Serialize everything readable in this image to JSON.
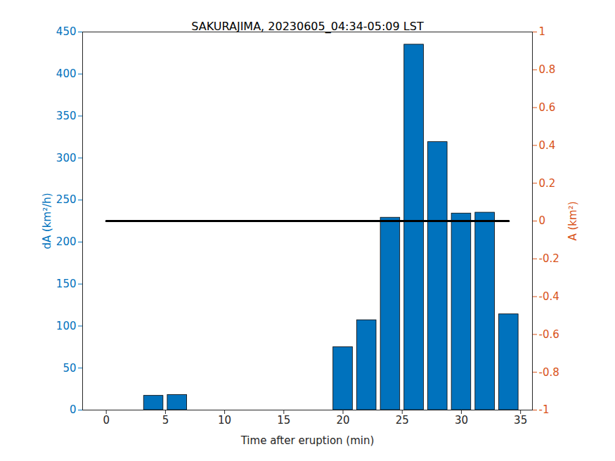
{
  "chart_data": {
    "type": "bar",
    "title": "SAKURAJIMA, 20230605_04:34-05:09 LST",
    "x": [
      0,
      2,
      4,
      6,
      8,
      10,
      12,
      14,
      16,
      18,
      20,
      22,
      24,
      26,
      28,
      30,
      32,
      34
    ],
    "series": [
      {
        "type": "bar",
        "color": "#0072bd",
        "values": [
          0,
          0,
          17,
          18,
          0,
          0,
          0,
          0,
          0,
          0,
          75,
          107,
          229,
          435,
          319,
          234,
          235,
          114
        ]
      },
      {
        "type": "line",
        "color": "#000000",
        "axis": "y2",
        "values": [
          0,
          0,
          0,
          0,
          0,
          0,
          0,
          0,
          0,
          0,
          0,
          0,
          0,
          0,
          0,
          0,
          0,
          0
        ]
      }
    ],
    "x_label": "Time after eruption (min)",
    "y_label": "dA (km²/h)",
    "y2_label": "A (km²)",
    "xlim": [
      -2,
      36
    ],
    "xticks": [
      0,
      5,
      10,
      15,
      20,
      25,
      30,
      35
    ],
    "ylim": [
      0,
      450
    ],
    "yticks": [
      0,
      50,
      100,
      150,
      200,
      250,
      300,
      350,
      400,
      450
    ],
    "y2lim": [
      -1,
      1
    ],
    "y2ticks": [
      -1,
      -0.8,
      -0.6,
      -0.4,
      -0.2,
      0,
      0.2,
      0.4,
      0.6,
      0.8,
      1
    ]
  }
}
